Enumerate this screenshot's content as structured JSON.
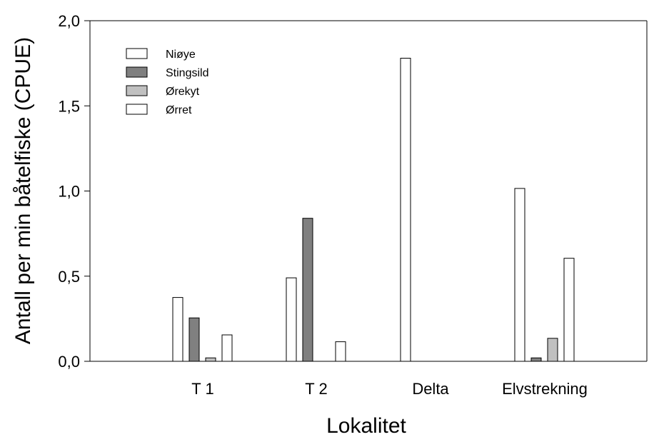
{
  "chart_data": {
    "type": "bar",
    "title": "",
    "xlabel": "Lokalitet",
    "ylabel": "Antall per min båtelfiske (CPUE)",
    "categories": [
      "T 1",
      "T 2",
      "Delta",
      "Elvstrekning"
    ],
    "ylim": [
      0,
      2.0
    ],
    "yticks": [
      0.0,
      0.5,
      1.0,
      1.5,
      2.0
    ],
    "ytick_labels": [
      "0,0",
      "0,5",
      "1,0",
      "1,5",
      "2,0"
    ],
    "legend_position": "top-left",
    "grid": false,
    "series": [
      {
        "name": "Niøye",
        "color": "#ffffff",
        "values": [
          0.375,
          0.49,
          1.78,
          1.015
        ]
      },
      {
        "name": "Stingsild",
        "color": "#808080",
        "values": [
          0.255,
          0.84,
          0.0,
          0.02
        ]
      },
      {
        "name": "Ørekyt",
        "color": "#c0c0c0",
        "values": [
          0.02,
          0.0,
          0.0,
          0.135
        ]
      },
      {
        "name": "Ørret",
        "color": "#ffffff",
        "values": [
          0.155,
          0.115,
          0.0,
          0.605
        ]
      }
    ]
  }
}
